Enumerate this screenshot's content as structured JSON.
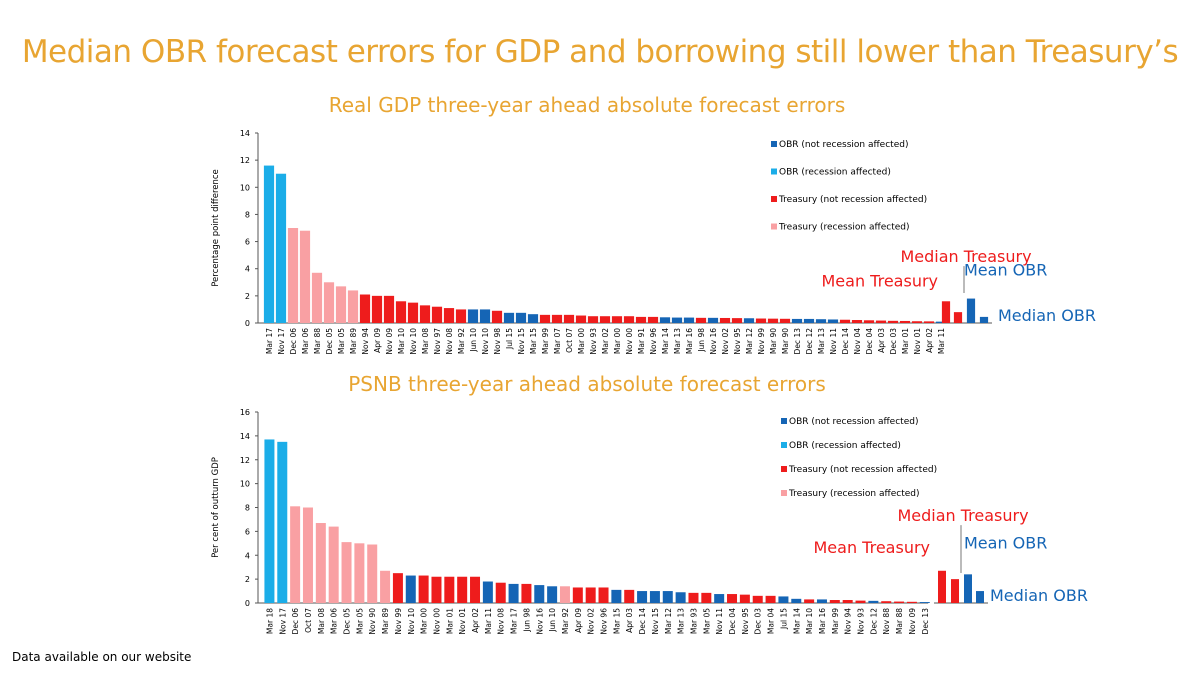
{
  "page": {
    "title": "Median OBR forecast errors for GDP and borrowing still lower than Treasury’s",
    "footer": "Data available on our website"
  },
  "colors": {
    "obr_not_recession": "#1565B5",
    "obr_recession": "#1BADE8",
    "treasury_not_recession": "#EE1C1C",
    "treasury_recession": "#F9A0A3",
    "title": "#E8A532"
  },
  "chart_data": [
    {
      "type": "bar",
      "title": "Real GDP three-year ahead absolute forecast errors",
      "ylabel": "Percentage point difference",
      "ylim": [
        0,
        14
      ],
      "yticks": [
        0,
        2,
        4,
        6,
        8,
        10,
        12,
        14
      ],
      "legend": {
        "position": "top-right",
        "entries": [
          {
            "key": "on",
            "label": "OBR (not recession affected)"
          },
          {
            "key": "or",
            "label": "OBR (recession affected)"
          },
          {
            "key": "tn",
            "label": "Treasury (not recession affected)"
          },
          {
            "key": "tr",
            "label": "Treasury (recession affected)"
          }
        ]
      },
      "categories": [
        "Mar 17",
        "Nov 17",
        "Dec 06",
        "Mar 06",
        "Mar 88",
        "Dec 05",
        "Mar 05",
        "Mar 89",
        "Nov 94",
        "Apr 09",
        "Nov 09",
        "Mar 10",
        "Nov 10",
        "Mar 08",
        "Nov 97",
        "Nov 08",
        "Mar 92",
        "Jun 10",
        "Nov 10",
        "Nov 98",
        "Jul 15",
        "Nov 15",
        "Mar 15",
        "Mar 99",
        "Mar 07",
        "Oct 07",
        "Mar 00",
        "Nov 93",
        "Mar 02",
        "Mar 00",
        "Nov 00",
        "Mar 91",
        "Nov 96",
        "Mar 14",
        "Mar 13",
        "Mar 16",
        "Jun 98",
        "Nov 16",
        "Nov 02",
        "Nov 95",
        "Mar 12",
        "Nov 99",
        "Mar 90",
        "Mar 90",
        "Dec 13",
        "Dec 12",
        "Mar 13",
        "Nov 11",
        "Dec 14",
        "Nov 04",
        "Dec 04",
        "Apr 03",
        "Dec 03",
        "Mar 01",
        "Nov 01",
        "Apr 02",
        "Mar 11"
      ],
      "values": [
        11.6,
        11.0,
        7.0,
        6.8,
        3.7,
        3.0,
        2.7,
        2.4,
        2.1,
        2.0,
        2.0,
        1.6,
        1.5,
        1.3,
        1.2,
        1.1,
        1.0,
        1.0,
        1.0,
        0.9,
        0.75,
        0.75,
        0.65,
        0.6,
        0.6,
        0.6,
        0.55,
        0.5,
        0.5,
        0.5,
        0.5,
        0.45,
        0.45,
        0.42,
        0.4,
        0.4,
        0.38,
        0.38,
        0.37,
        0.36,
        0.35,
        0.33,
        0.32,
        0.31,
        0.3,
        0.3,
        0.28,
        0.26,
        0.24,
        0.22,
        0.2,
        0.18,
        0.16,
        0.15,
        0.13,
        0.12,
        0.1
      ],
      "groups": [
        "or",
        "or",
        "tr",
        "tr",
        "tr",
        "tr",
        "tr",
        "tr",
        "tn",
        "tn",
        "tn",
        "tn",
        "tn",
        "tn",
        "tn",
        "tn",
        "tn",
        "on",
        "on",
        "tn",
        "on",
        "on",
        "on",
        "tn",
        "tn",
        "tn",
        "tn",
        "tn",
        "tn",
        "tn",
        "tn",
        "tn",
        "tn",
        "on",
        "on",
        "on",
        "tn",
        "on",
        "tn",
        "tn",
        "on",
        "tn",
        "tn",
        "tn",
        "on",
        "on",
        "on",
        "on",
        "tn",
        "tn",
        "tn",
        "tn",
        "tn",
        "tn",
        "tn",
        "tn",
        "on"
      ],
      "summary": [
        {
          "label": "Mean Treasury",
          "value": 1.6,
          "group": "tn"
        },
        {
          "label": "Median Treasury",
          "value": 0.8,
          "group": "tn"
        },
        {
          "label": "Mean OBR",
          "value": 1.8,
          "group": "on"
        },
        {
          "label": "Median OBR",
          "value": 0.45,
          "group": "on"
        }
      ]
    },
    {
      "type": "bar",
      "title": "PSNB three-year ahead absolute forecast errors",
      "ylabel": "Per cent of outturn GDP",
      "ylim": [
        0,
        16
      ],
      "yticks": [
        0,
        2,
        4,
        6,
        8,
        10,
        12,
        14,
        16
      ],
      "legend": {
        "position": "top-right",
        "entries": [
          {
            "key": "on",
            "label": "OBR (not recession affected)"
          },
          {
            "key": "or",
            "label": "OBR (recession affected)"
          },
          {
            "key": "tn",
            "label": "Treasury (not recession affected)"
          },
          {
            "key": "tr",
            "label": "Treasury (recession affected)"
          }
        ]
      },
      "categories": [
        "Mar 18",
        "Nov 17",
        "Dec 06",
        "Oct 07",
        "Mar 08",
        "Mar 06",
        "Dec 05",
        "Mar 05",
        "Nov 90",
        "Mar 89",
        "Nov 99",
        "Nov 10",
        "Mar 00",
        "Nov 00",
        "Mar 01",
        "Nov 01",
        "Apr 02",
        "Mar 11",
        "Nov 08",
        "Mar 17",
        "Jun 98",
        "Nov 16",
        "Jun 10",
        "Mar 92",
        "Apr 09",
        "Nov 02",
        "Nov 96",
        "Mar 15",
        "Apr 03",
        "Dec 14",
        "Nov 15",
        "Mar 12",
        "Mar 13",
        "Mar 93",
        "Mar 05",
        "Nov 11",
        "Dec 04",
        "Nov 95",
        "Dec 03",
        "Mar 04",
        "Jul 15",
        "Mar 14",
        "Mar 10",
        "Mar 16",
        "Mar 99",
        "Nov 94",
        "Nov 93",
        "Dec 12",
        "Nov 88",
        "Mar 88",
        "Nov 09",
        "Dec 13"
      ],
      "values": [
        13.7,
        13.5,
        8.1,
        8.0,
        6.7,
        6.4,
        5.1,
        5.0,
        4.9,
        2.7,
        2.5,
        2.3,
        2.3,
        2.2,
        2.2,
        2.2,
        2.2,
        1.8,
        1.7,
        1.6,
        1.6,
        1.5,
        1.4,
        1.4,
        1.3,
        1.3,
        1.3,
        1.1,
        1.1,
        1.0,
        1.0,
        1.0,
        0.9,
        0.85,
        0.85,
        0.75,
        0.75,
        0.7,
        0.6,
        0.6,
        0.55,
        0.35,
        0.3,
        0.3,
        0.25,
        0.25,
        0.2,
        0.18,
        0.15,
        0.12,
        0.1,
        0.08
      ],
      "groups": [
        "or",
        "or",
        "tr",
        "tr",
        "tr",
        "tr",
        "tr",
        "tr",
        "tr",
        "tr",
        "tn",
        "on",
        "tn",
        "tn",
        "tn",
        "tn",
        "tn",
        "on",
        "tn",
        "on",
        "tn",
        "on",
        "on",
        "tr",
        "tn",
        "tn",
        "tn",
        "on",
        "tn",
        "on",
        "on",
        "on",
        "on",
        "tn",
        "tn",
        "on",
        "tn",
        "tn",
        "tn",
        "tn",
        "on",
        "on",
        "tn",
        "on",
        "tn",
        "tn",
        "tn",
        "on",
        "tn",
        "tn",
        "tn",
        "on"
      ],
      "summary": [
        {
          "label": "Mean Treasury",
          "value": 2.7,
          "group": "tn"
        },
        {
          "label": "Median Treasury",
          "value": 2.0,
          "group": "tn"
        },
        {
          "label": "Mean OBR",
          "value": 2.4,
          "group": "on"
        },
        {
          "label": "Median OBR",
          "value": 1.0,
          "group": "on"
        }
      ]
    }
  ]
}
